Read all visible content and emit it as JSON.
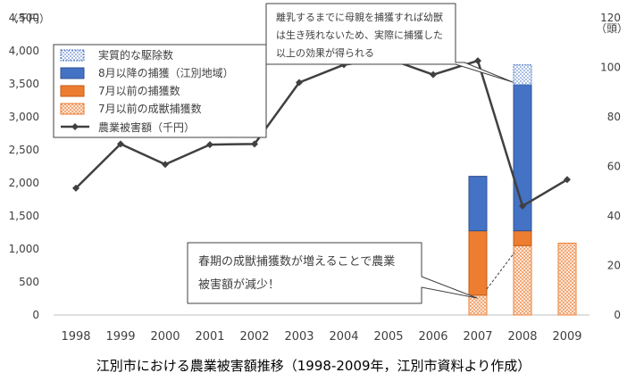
{
  "chart_data": {
    "type": "bar",
    "caption": "江別市における農業被害額推移（1998-2009年，江別市資料より作成）",
    "y_left_unit": "（千円）",
    "y_right_unit": "（頭）",
    "ylim_left": [
      0,
      4500
    ],
    "ylim_right": [
      0,
      120
    ],
    "left_ticks": [
      "0",
      "500",
      "1,000",
      "1,500",
      "2,000",
      "2,500",
      "3,000",
      "3,500",
      "4,000",
      "4,500"
    ],
    "right_ticks": [
      "0",
      "20",
      "40",
      "60",
      "80",
      "100",
      "120"
    ],
    "categories": [
      "1998",
      "1999",
      "2000",
      "2001",
      "2002",
      "2003",
      "2004",
      "2005",
      "2006",
      "2007",
      "2008",
      "2009"
    ],
    "legend_position": "top-left",
    "bar_series": [
      {
        "name": "7月以前の成獣捕獲数",
        "color": "#F4B183",
        "pattern": "dots-orange",
        "values": [
          0,
          0,
          0,
          0,
          0,
          0,
          0,
          0,
          0,
          8,
          28,
          29
        ]
      },
      {
        "name": "7月以前の捕獲数",
        "color": "#ED7D31",
        "pattern": "solid",
        "values": [
          0,
          0,
          0,
          0,
          0,
          0,
          0,
          0,
          0,
          26,
          6,
          0
        ]
      },
      {
        "name": "8月以降の捕獲（江別地域）",
        "color": "#4472C4",
        "pattern": "solid",
        "values": [
          0,
          0,
          0,
          0,
          0,
          0,
          0,
          0,
          0,
          22,
          59,
          0
        ]
      },
      {
        "name": "実質的な駆除数",
        "color": "#4472C4",
        "pattern": "dots-blue",
        "values": [
          0,
          0,
          0,
          0,
          0,
          0,
          0,
          0,
          0,
          0,
          8,
          0
        ]
      }
    ],
    "line_series": {
      "name": "農業被害額（千円）",
      "color": "#404040",
      "values": [
        1920,
        2590,
        2280,
        2580,
        2590,
        3520,
        3790,
        3880,
        3640,
        3850,
        1650,
        2050
      ]
    },
    "callouts": [
      {
        "id": "top",
        "lines": [
          "離乳するまでに母親を捕獲すれば幼獣",
          "は生き残れないため、実際に捕獲した",
          "以上の効果が得られる"
        ]
      },
      {
        "id": "bottom",
        "lines": [
          "春期の成獣捕獲数が増えることで農業",
          "被害額が減少！"
        ]
      }
    ]
  }
}
